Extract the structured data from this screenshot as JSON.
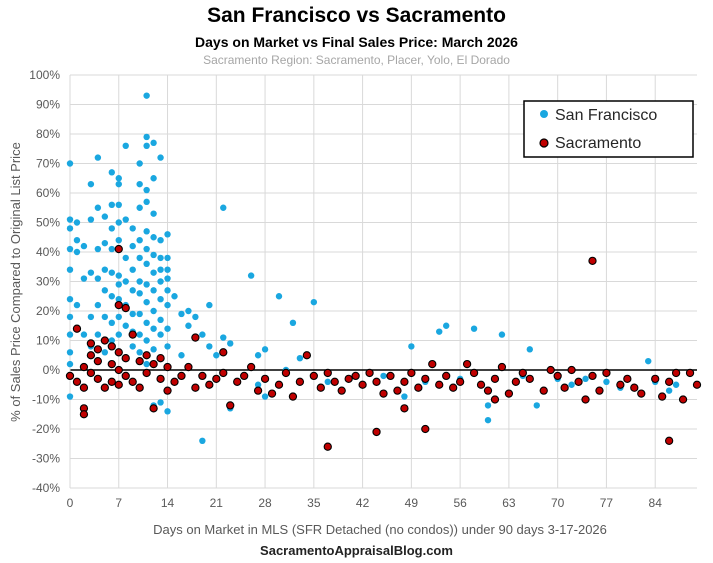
{
  "chart_data": {
    "type": "scatter",
    "title": "San Francisco vs Sacramento",
    "subtitle": "Days on Market vs Final Sales Price: March 2026",
    "note": "Sacramento Region: Sacramento, Placer, Yolo, El Dorado",
    "xlabel": "Days on Market in MLS (SFR Detached (no condos)) under 90 days 3-17-2026",
    "ylabel": "% of Sales Price Compared to Original List Price",
    "footer": "SacramentoAppraisalBlog.com",
    "xlim": [
      0,
      90
    ],
    "ylim": [
      -40,
      100
    ],
    "x_ticks": [
      "0",
      "7",
      "14",
      "21",
      "28",
      "35",
      "42",
      "49",
      "56",
      "63",
      "70",
      "77",
      "84"
    ],
    "x_tick_values": [
      0,
      7,
      14,
      21,
      28,
      35,
      42,
      49,
      56,
      63,
      70,
      77,
      84
    ],
    "y_ticks": [
      "100%",
      "90%",
      "80%",
      "70%",
      "60%",
      "50%",
      "40%",
      "30%",
      "20%",
      "10%",
      "0%",
      "-10%",
      "-20%",
      "-30%",
      "-40%"
    ],
    "y_tick_values": [
      100,
      90,
      80,
      70,
      60,
      50,
      40,
      30,
      20,
      10,
      0,
      -10,
      -20,
      -30,
      -40
    ],
    "legend_position": "top-right",
    "series": [
      {
        "name": "San Francisco",
        "color": "#1aa7e0",
        "points": [
          [
            0,
            70
          ],
          [
            0,
            51
          ],
          [
            0,
            48
          ],
          [
            0,
            41
          ],
          [
            0,
            34
          ],
          [
            0,
            24
          ],
          [
            0,
            18
          ],
          [
            0,
            12
          ],
          [
            0,
            6
          ],
          [
            0,
            2
          ],
          [
            0,
            -9
          ],
          [
            1,
            50
          ],
          [
            1,
            44
          ],
          [
            1,
            40
          ],
          [
            1,
            22
          ],
          [
            2,
            42
          ],
          [
            2,
            31
          ],
          [
            2,
            12
          ],
          [
            3,
            63
          ],
          [
            3,
            51
          ],
          [
            3,
            33
          ],
          [
            3,
            18
          ],
          [
            3,
            8
          ],
          [
            4,
            72
          ],
          [
            4,
            55
          ],
          [
            4,
            41
          ],
          [
            4,
            31
          ],
          [
            4,
            22
          ],
          [
            4,
            12
          ],
          [
            5,
            52
          ],
          [
            5,
            43
          ],
          [
            5,
            34
          ],
          [
            5,
            27
          ],
          [
            5,
            18
          ],
          [
            5,
            6
          ],
          [
            6,
            67
          ],
          [
            6,
            56
          ],
          [
            6,
            48
          ],
          [
            6,
            41
          ],
          [
            6,
            33
          ],
          [
            6,
            25
          ],
          [
            6,
            16
          ],
          [
            6,
            10
          ],
          [
            7,
            65
          ],
          [
            7,
            63
          ],
          [
            7,
            56
          ],
          [
            7,
            50
          ],
          [
            7,
            44
          ],
          [
            7,
            41
          ],
          [
            7,
            32
          ],
          [
            7,
            29
          ],
          [
            7,
            24
          ],
          [
            7,
            18
          ],
          [
            7,
            12
          ],
          [
            8,
            76
          ],
          [
            8,
            51
          ],
          [
            8,
            38
          ],
          [
            8,
            30
          ],
          [
            8,
            22
          ],
          [
            8,
            15
          ],
          [
            9,
            48
          ],
          [
            9,
            42
          ],
          [
            9,
            34
          ],
          [
            9,
            27
          ],
          [
            9,
            19
          ],
          [
            9,
            13
          ],
          [
            9,
            8
          ],
          [
            10,
            70
          ],
          [
            10,
            63
          ],
          [
            10,
            55
          ],
          [
            10,
            44
          ],
          [
            10,
            38
          ],
          [
            10,
            30
          ],
          [
            10,
            26
          ],
          [
            10,
            19
          ],
          [
            10,
            12
          ],
          [
            10,
            6
          ],
          [
            11,
            93
          ],
          [
            11,
            79
          ],
          [
            11,
            76
          ],
          [
            11,
            61
          ],
          [
            11,
            57
          ],
          [
            11,
            47
          ],
          [
            11,
            41
          ],
          [
            11,
            36
          ],
          [
            11,
            29
          ],
          [
            11,
            23
          ],
          [
            11,
            16
          ],
          [
            11,
            10
          ],
          [
            11,
            2
          ],
          [
            12,
            77
          ],
          [
            12,
            65
          ],
          [
            12,
            53
          ],
          [
            12,
            45
          ],
          [
            12,
            39
          ],
          [
            12,
            33
          ],
          [
            12,
            27
          ],
          [
            12,
            20
          ],
          [
            12,
            14
          ],
          [
            12,
            7
          ],
          [
            12,
            -12
          ],
          [
            13,
            72
          ],
          [
            13,
            44
          ],
          [
            13,
            38
          ],
          [
            13,
            34
          ],
          [
            13,
            30
          ],
          [
            13,
            24
          ],
          [
            13,
            17
          ],
          [
            13,
            12
          ],
          [
            13,
            -3
          ],
          [
            13,
            -11
          ],
          [
            14,
            46
          ],
          [
            14,
            38
          ],
          [
            14,
            34
          ],
          [
            14,
            31
          ],
          [
            14,
            27
          ],
          [
            14,
            22
          ],
          [
            14,
            14
          ],
          [
            14,
            8
          ],
          [
            14,
            -14
          ],
          [
            15,
            25
          ],
          [
            16,
            19
          ],
          [
            16,
            5
          ],
          [
            17,
            20
          ],
          [
            17,
            15
          ],
          [
            18,
            18
          ],
          [
            19,
            -24
          ],
          [
            19,
            12
          ],
          [
            20,
            22
          ],
          [
            20,
            8
          ],
          [
            21,
            5
          ],
          [
            22,
            55
          ],
          [
            22,
            11
          ],
          [
            23,
            -13
          ],
          [
            23,
            9
          ],
          [
            26,
            32
          ],
          [
            27,
            -5
          ],
          [
            27,
            5
          ],
          [
            28,
            -9
          ],
          [
            28,
            7
          ],
          [
            30,
            25
          ],
          [
            31,
            0
          ],
          [
            32,
            16
          ],
          [
            33,
            4
          ],
          [
            35,
            23
          ],
          [
            37,
            -4
          ],
          [
            45,
            -2
          ],
          [
            48,
            -9
          ],
          [
            49,
            8
          ],
          [
            51,
            -4
          ],
          [
            53,
            13
          ],
          [
            54,
            15
          ],
          [
            56,
            -3
          ],
          [
            58,
            14
          ],
          [
            60,
            -17
          ],
          [
            60,
            -12
          ],
          [
            62,
            12
          ],
          [
            65,
            -2
          ],
          [
            66,
            7
          ],
          [
            67,
            -12
          ],
          [
            70,
            -3
          ],
          [
            72,
            -5
          ],
          [
            74,
            -3
          ],
          [
            77,
            -4
          ],
          [
            79,
            -6
          ],
          [
            83,
            3
          ],
          [
            84,
            -4
          ],
          [
            86,
            -7
          ],
          [
            87,
            -5
          ]
        ]
      },
      {
        "name": "Sacramento",
        "color": "#c00000",
        "edge_color": "#000000",
        "points": [
          [
            0,
            -2
          ],
          [
            1,
            14
          ],
          [
            1,
            -4
          ],
          [
            2,
            -13
          ],
          [
            2,
            -15
          ],
          [
            2,
            -6
          ],
          [
            2,
            1
          ],
          [
            3,
            9
          ],
          [
            3,
            5
          ],
          [
            3,
            -1
          ],
          [
            4,
            7
          ],
          [
            4,
            3
          ],
          [
            4,
            -3
          ],
          [
            5,
            10
          ],
          [
            5,
            -6
          ],
          [
            6,
            8
          ],
          [
            6,
            2
          ],
          [
            6,
            -4
          ],
          [
            7,
            41
          ],
          [
            7,
            22
          ],
          [
            7,
            6
          ],
          [
            7,
            0
          ],
          [
            7,
            -5
          ],
          [
            8,
            21
          ],
          [
            8,
            4
          ],
          [
            8,
            -2
          ],
          [
            9,
            12
          ],
          [
            9,
            -4
          ],
          [
            10,
            3
          ],
          [
            10,
            -6
          ],
          [
            11,
            5
          ],
          [
            11,
            -1
          ],
          [
            12,
            -13
          ],
          [
            12,
            2
          ],
          [
            13,
            4
          ],
          [
            13,
            -3
          ],
          [
            14,
            1
          ],
          [
            14,
            -7
          ],
          [
            15,
            -4
          ],
          [
            16,
            -2
          ],
          [
            17,
            1
          ],
          [
            18,
            11
          ],
          [
            18,
            -6
          ],
          [
            19,
            -2
          ],
          [
            20,
            -5
          ],
          [
            21,
            -3
          ],
          [
            22,
            6
          ],
          [
            22,
            -1
          ],
          [
            23,
            -12
          ],
          [
            24,
            -4
          ],
          [
            25,
            -2
          ],
          [
            26,
            1
          ],
          [
            27,
            -7
          ],
          [
            28,
            -3
          ],
          [
            29,
            -8
          ],
          [
            30,
            -5
          ],
          [
            31,
            -1
          ],
          [
            32,
            -9
          ],
          [
            33,
            -4
          ],
          [
            34,
            5
          ],
          [
            35,
            -2
          ],
          [
            36,
            -6
          ],
          [
            37,
            -26
          ],
          [
            37,
            -1
          ],
          [
            38,
            -4
          ],
          [
            39,
            -7
          ],
          [
            40,
            -3
          ],
          [
            41,
            -2
          ],
          [
            42,
            -5
          ],
          [
            43,
            -1
          ],
          [
            44,
            -21
          ],
          [
            44,
            -4
          ],
          [
            45,
            -8
          ],
          [
            46,
            -2
          ],
          [
            47,
            -7
          ],
          [
            48,
            -13
          ],
          [
            48,
            -4
          ],
          [
            49,
            -1
          ],
          [
            50,
            -6
          ],
          [
            51,
            -20
          ],
          [
            51,
            -3
          ],
          [
            52,
            2
          ],
          [
            53,
            -5
          ],
          [
            54,
            -2
          ],
          [
            55,
            -6
          ],
          [
            56,
            -4
          ],
          [
            57,
            2
          ],
          [
            58,
            -1
          ],
          [
            59,
            -5
          ],
          [
            60,
            -7
          ],
          [
            61,
            -10
          ],
          [
            61,
            -3
          ],
          [
            62,
            1
          ],
          [
            63,
            -8
          ],
          [
            64,
            -4
          ],
          [
            65,
            -1
          ],
          [
            66,
            -3
          ],
          [
            68,
            -7
          ],
          [
            69,
            0
          ],
          [
            70,
            -2
          ],
          [
            71,
            -6
          ],
          [
            72,
            0
          ],
          [
            73,
            -4
          ],
          [
            74,
            -10
          ],
          [
            75,
            37
          ],
          [
            75,
            -2
          ],
          [
            76,
            -7
          ],
          [
            77,
            -1
          ],
          [
            79,
            -5
          ],
          [
            80,
            -3
          ],
          [
            81,
            -6
          ],
          [
            82,
            -8
          ],
          [
            84,
            -3
          ],
          [
            85,
            -9
          ],
          [
            86,
            -24
          ],
          [
            86,
            -4
          ],
          [
            87,
            -1
          ],
          [
            88,
            -10
          ],
          [
            89,
            -1
          ],
          [
            90,
            -5
          ]
        ]
      }
    ]
  }
}
